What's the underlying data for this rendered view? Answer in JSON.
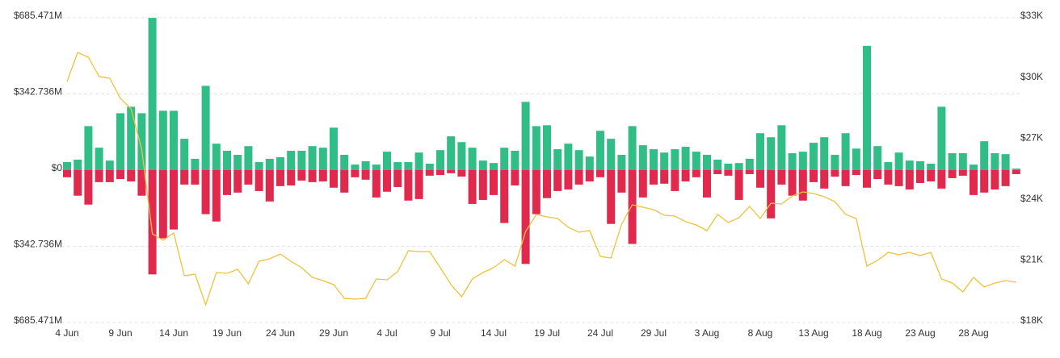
{
  "chart_data": {
    "type": "bar",
    "categories": [
      "4 Jun",
      null,
      null,
      null,
      null,
      "9 Jun",
      null,
      null,
      null,
      null,
      "14 Jun",
      null,
      null,
      null,
      null,
      "19 Jun",
      null,
      null,
      null,
      null,
      "24 Jun",
      null,
      null,
      null,
      null,
      "29 Jun",
      null,
      null,
      null,
      null,
      "4 Jul",
      null,
      null,
      null,
      null,
      "9 Jul",
      null,
      null,
      null,
      null,
      "14 Jul",
      null,
      null,
      null,
      null,
      "19 Jul",
      null,
      null,
      null,
      null,
      "24 Jul",
      null,
      null,
      null,
      null,
      "29 Jul",
      null,
      null,
      null,
      null,
      "3 Aug",
      null,
      null,
      null,
      null,
      "8 Aug",
      null,
      null,
      null,
      null,
      "13 Aug",
      null,
      null,
      null,
      null,
      "18 Aug",
      null,
      null,
      null,
      null,
      "23 Aug",
      null,
      null,
      null,
      null,
      "28 Aug",
      null,
      null,
      null,
      null
    ],
    "series": [
      {
        "type": "bar",
        "color": "#30bd86",
        "values": [
          36,
          47,
          198,
          101,
          43,
          256,
          285,
          256,
          685,
          267,
          267,
          141,
          51,
          379,
          119,
          87,
          69,
          108,
          36,
          51,
          58,
          87,
          87,
          108,
          101,
          191,
          69,
          25,
          40,
          25,
          83,
          36,
          36,
          79,
          29,
          90,
          152,
          126,
          101,
          43,
          32,
          101,
          87,
          307,
          198,
          202,
          94,
          119,
          90,
          61,
          177,
          141,
          69,
          198,
          112,
          94,
          79,
          94,
          105,
          83,
          69,
          47,
          29,
          32,
          51,
          166,
          148,
          202,
          76,
          83,
          123,
          148,
          69,
          166,
          97,
          559,
          108,
          36,
          79,
          43,
          40,
          29,
          285,
          76,
          76,
          25,
          130,
          76,
          72,
          7
        ]
      },
      {
        "type": "bar",
        "color": "#e0294c",
        "values": [
          -32,
          -115,
          -155,
          -54,
          -54,
          -40,
          -51,
          -115,
          -469,
          -307,
          -267,
          -65,
          -65,
          -198,
          -231,
          -112,
          -101,
          -65,
          -94,
          -141,
          -72,
          -69,
          -47,
          -54,
          -51,
          -79,
          -101,
          -32,
          -43,
          -123,
          -97,
          -76,
          -137,
          -130,
          -25,
          -22,
          -14,
          -29,
          -152,
          -134,
          -112,
          -238,
          -69,
          -422,
          -198,
          -126,
          -94,
          -87,
          -65,
          -51,
          -32,
          -242,
          -101,
          -332,
          -123,
          -65,
          -61,
          -94,
          -51,
          -32,
          -123,
          -18,
          -25,
          -134,
          -18,
          -79,
          -217,
          -65,
          -115,
          -137,
          -54,
          -83,
          -29,
          -72,
          -22,
          -79,
          -40,
          -65,
          -72,
          -87,
          -58,
          -51,
          -83,
          -36,
          -25,
          -112,
          -101,
          -87,
          -72,
          -18
        ]
      },
      {
        "type": "line",
        "axis": "y2",
        "color": "#eec23a",
        "values": [
          29865,
          31294,
          31056,
          30103,
          30024,
          29032,
          28516,
          26530,
          22366,
          22048,
          22405,
          20302,
          20381,
          18874,
          20460,
          20421,
          20619,
          19905,
          21016,
          21135,
          21373,
          21016,
          20699,
          20222,
          20064,
          19866,
          19191,
          19151,
          19191,
          20143,
          20103,
          20500,
          21532,
          21492,
          21492,
          20699,
          19866,
          19270,
          20143,
          20460,
          20699,
          21096,
          20778,
          22484,
          23318,
          23199,
          23119,
          22683,
          22445,
          22524,
          21254,
          21175,
          22842,
          23794,
          23675,
          23556,
          23278,
          23239,
          22961,
          22802,
          22524,
          23318,
          22921,
          23159,
          23714,
          23119,
          23873,
          23833,
          24230,
          24429,
          24350,
          24191,
          23952,
          23318,
          23119,
          20778,
          21056,
          21453,
          21334,
          21453,
          21294,
          21453,
          20143,
          19945,
          19508,
          20222,
          19747,
          19945,
          20064,
          19985
        ]
      }
    ],
    "ylim": [
      -685.471,
      685.471
    ],
    "yticks": [
      {
        "value": -685.471,
        "label": "$685.471M"
      },
      {
        "value": -342.736,
        "label": "$342.736M"
      },
      {
        "value": 0,
        "label": "$0"
      },
      {
        "value": 342.736,
        "label": "$342.736M"
      },
      {
        "value": 685.471,
        "label": "$685.471M"
      }
    ],
    "y2lim": [
      18000,
      33000
    ],
    "y2ticks": [
      {
        "value": 18000,
        "label": "$18K"
      },
      {
        "value": 21000,
        "label": "$21K"
      },
      {
        "value": 24000,
        "label": "$24K"
      },
      {
        "value": 27000,
        "label": "$27K"
      },
      {
        "value": 30000,
        "label": "$30K"
      },
      {
        "value": 33000,
        "label": "$33K"
      }
    ],
    "grid": true
  }
}
